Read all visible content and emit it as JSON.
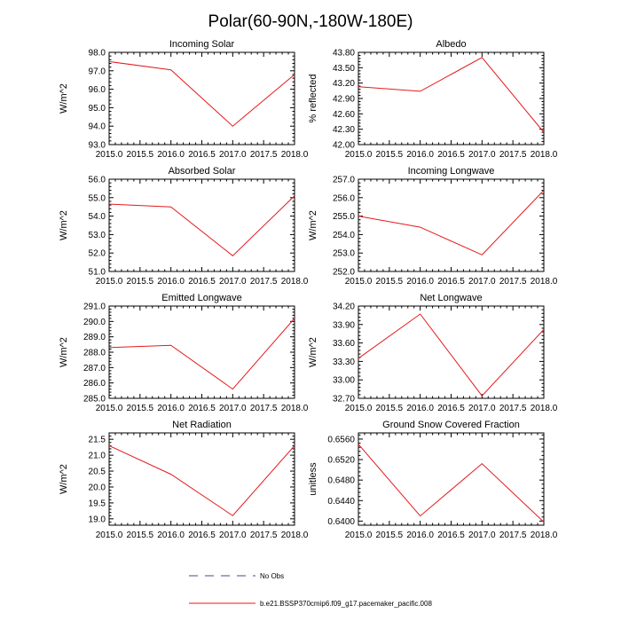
{
  "figure": {
    "title": "Polar(60-90N,-180W-180E)",
    "line_color": "#e41a1c",
    "obs_color": "#4a4a8a"
  },
  "legend": {
    "items": [
      {
        "label": "No Obs",
        "style": "dashed",
        "color": "#4a4a8a"
      },
      {
        "label": "b.e21.BSSP370cmip6.f09_g17.pacemaker_pacific.008",
        "style": "solid",
        "color": "#e41a1c"
      }
    ]
  },
  "chart_data": [
    {
      "type": "line",
      "title": "Incoming Solar",
      "ylabel": "W/m^2",
      "x": [
        2015.0,
        2016.0,
        2017.0,
        2018.0
      ],
      "values": [
        97.5,
        97.05,
        94.0,
        96.8
      ],
      "xlim": [
        2015.0,
        2018.0
      ],
      "ylim": [
        93.0,
        98.0
      ],
      "xticks": [
        "2015.0",
        "2015.5",
        "2016.0",
        "2016.5",
        "2017.0",
        "2017.5",
        "2018.0"
      ],
      "yticks": [
        "93.0",
        "94.0",
        "95.0",
        "96.0",
        "97.0",
        "98.0"
      ]
    },
    {
      "type": "line",
      "title": "Albedo",
      "ylabel": "% reflected",
      "x": [
        2015.0,
        2016.0,
        2017.0,
        2018.0
      ],
      "values": [
        43.13,
        43.04,
        43.7,
        42.24
      ],
      "xlim": [
        2015.0,
        2018.0
      ],
      "ylim": [
        42.0,
        43.8
      ],
      "xticks": [
        "2015.0",
        "2015.5",
        "2016.0",
        "2016.5",
        "2017.0",
        "2017.5",
        "2018.0"
      ],
      "yticks": [
        "42.00",
        "42.30",
        "42.60",
        "42.90",
        "43.20",
        "43.50",
        "43.80"
      ]
    },
    {
      "type": "line",
      "title": "Absorbed Solar",
      "ylabel": "W/m^2",
      "x": [
        2015.0,
        2016.0,
        2017.0,
        2018.0
      ],
      "values": [
        54.65,
        54.5,
        51.85,
        55.1
      ],
      "xlim": [
        2015.0,
        2018.0
      ],
      "ylim": [
        51.0,
        56.0
      ],
      "xticks": [
        "2015.0",
        "2015.5",
        "2016.0",
        "2016.5",
        "2017.0",
        "2017.5",
        "2018.0"
      ],
      "yticks": [
        "51.0",
        "52.0",
        "53.0",
        "54.0",
        "55.0",
        "56.0"
      ]
    },
    {
      "type": "line",
      "title": "Incoming Longwave",
      "ylabel": "W/m^2",
      "x": [
        2015.0,
        2016.0,
        2017.0,
        2018.0
      ],
      "values": [
        255.0,
        254.4,
        252.9,
        256.4
      ],
      "xlim": [
        2015.0,
        2018.0
      ],
      "ylim": [
        252.0,
        257.0
      ],
      "xticks": [
        "2015.0",
        "2015.5",
        "2016.0",
        "2016.5",
        "2017.0",
        "2017.5",
        "2018.0"
      ],
      "yticks": [
        "252.0",
        "253.0",
        "254.0",
        "255.0",
        "256.0",
        "257.0"
      ]
    },
    {
      "type": "line",
      "title": "Emitted Longwave",
      "ylabel": "W/m^2",
      "x": [
        2015.0,
        2016.0,
        2017.0,
        2018.0
      ],
      "values": [
        288.3,
        288.45,
        285.6,
        290.2
      ],
      "xlim": [
        2015.0,
        2018.0
      ],
      "ylim": [
        285.0,
        291.0
      ],
      "xticks": [
        "2015.0",
        "2015.5",
        "2016.0",
        "2016.5",
        "2017.0",
        "2017.5",
        "2018.0"
      ],
      "yticks": [
        "285.0",
        "286.0",
        "287.0",
        "288.0",
        "289.0",
        "290.0",
        "291.0"
      ]
    },
    {
      "type": "line",
      "title": "Net Longwave",
      "ylabel": "W/m^2",
      "x": [
        2015.0,
        2016.0,
        2017.0,
        2018.0
      ],
      "values": [
        33.35,
        34.07,
        32.74,
        33.82
      ],
      "xlim": [
        2015.0,
        2018.0
      ],
      "ylim": [
        32.7,
        34.2
      ],
      "xticks": [
        "2015.0",
        "2015.5",
        "2016.0",
        "2016.5",
        "2017.0",
        "2017.5",
        "2018.0"
      ],
      "yticks": [
        "32.70",
        "33.00",
        "33.30",
        "33.60",
        "33.90",
        "34.20"
      ]
    },
    {
      "type": "line",
      "title": "Net Radiation",
      "ylabel": "W/m^2",
      "x": [
        2015.0,
        2016.0,
        2017.0,
        2018.0
      ],
      "values": [
        21.3,
        20.4,
        19.1,
        21.3
      ],
      "xlim": [
        2015.0,
        2018.0
      ],
      "ylim": [
        18.8,
        21.7
      ],
      "xticks": [
        "2015.0",
        "2015.5",
        "2016.0",
        "2016.5",
        "2017.0",
        "2017.5",
        "2018.0"
      ],
      "yticks": [
        "19.0",
        "19.5",
        "20.0",
        "20.5",
        "21.0",
        "21.5"
      ]
    },
    {
      "type": "line",
      "title": "Ground Snow Covered Fraction",
      "ylabel": "unitless",
      "x": [
        2015.0,
        2016.0,
        2017.0,
        2018.0
      ],
      "values": [
        0.655,
        0.641,
        0.6512,
        0.6398
      ],
      "xlim": [
        2015.0,
        2018.0
      ],
      "ylim": [
        0.6392,
        0.6572
      ],
      "xticks": [
        "2015.0",
        "2015.5",
        "2016.0",
        "2016.5",
        "2017.0",
        "2017.5",
        "2018.0"
      ],
      "yticks": [
        "0.6400",
        "0.6440",
        "0.6480",
        "0.6520",
        "0.6560"
      ]
    }
  ]
}
